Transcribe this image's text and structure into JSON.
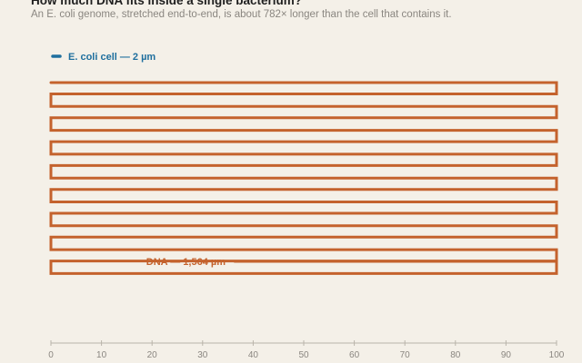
{
  "header": {
    "title": "How much DNA fits inside a single bacterium?",
    "subtitle": "An E. coli genome, stretched end-to-end, is about 782× longer than the cell that contains it."
  },
  "colors": {
    "background": "#f4f0e8",
    "dna": "#c4622d",
    "cell": "#1f6f9e",
    "axis": "#b9b4aa",
    "tick_label": "#8a8680"
  },
  "chart_data": {
    "type": "line",
    "title": "How much DNA fits inside a single bacterium?",
    "subtitle": "An E. coli genome, stretched end-to-end, is about 782× longer than the cell that contains it.",
    "xlabel": "",
    "ylabel": "",
    "xlim": [
      0,
      100
    ],
    "xticks": [
      0,
      10,
      20,
      30,
      40,
      50,
      60,
      70,
      80,
      90,
      100
    ],
    "grid": false,
    "series": [
      {
        "name": "E. coli cell — 2 µm",
        "length_um": 2,
        "color": "#1f6f9e"
      },
      {
        "name": "DNA — 1,564 µm",
        "length_um": 1564,
        "color": "#c4622d"
      }
    ]
  }
}
